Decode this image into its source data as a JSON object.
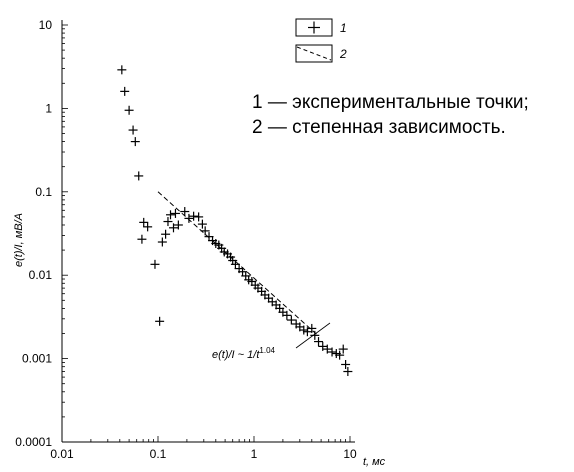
{
  "chart_data": {
    "type": "scatter",
    "xscale": "log",
    "yscale": "log",
    "xlim": [
      0.01,
      10
    ],
    "ylim": [
      0.0001,
      10
    ],
    "xticks": [
      "0.01",
      "0.1",
      "1",
      "10"
    ],
    "yticks": [
      "0.0001",
      "0.001",
      "0.01",
      "0.1",
      "1",
      "10"
    ],
    "xlabel": "t, мс",
    "ylabel": "e(t)/I, мВ/А",
    "legend": [
      {
        "label": "1",
        "marker": "+"
      },
      {
        "label": "2",
        "marker": "dashed-line"
      }
    ],
    "fit_annotation": "e(t)/I ~ 1/t^1.04",
    "series": [
      {
        "name": "1",
        "marker": "+",
        "points": [
          [
            0.042,
            2.9
          ],
          [
            0.045,
            1.6
          ],
          [
            0.05,
            0.95
          ],
          [
            0.055,
            0.55
          ],
          [
            0.058,
            0.4
          ],
          [
            0.063,
            0.155
          ],
          [
            0.068,
            0.027
          ],
          [
            0.071,
            0.043
          ],
          [
            0.078,
            0.038
          ],
          [
            0.093,
            0.0135
          ],
          [
            0.104,
            0.0028
          ],
          [
            0.111,
            0.025
          ],
          [
            0.12,
            0.031
          ],
          [
            0.127,
            0.044
          ],
          [
            0.135,
            0.053
          ],
          [
            0.145,
            0.037
          ],
          [
            0.152,
            0.055
          ],
          [
            0.163,
            0.04
          ],
          [
            0.19,
            0.058
          ],
          [
            0.21,
            0.048
          ],
          [
            0.235,
            0.051
          ],
          [
            0.265,
            0.05
          ],
          [
            0.29,
            0.041
          ],
          [
            0.31,
            0.034
          ],
          [
            0.34,
            0.029
          ],
          [
            0.37,
            0.026
          ],
          [
            0.4,
            0.024
          ],
          [
            0.43,
            0.023
          ],
          [
            0.46,
            0.021
          ],
          [
            0.49,
            0.019
          ],
          [
            0.53,
            0.018
          ],
          [
            0.57,
            0.0165
          ],
          [
            0.6,
            0.015
          ],
          [
            0.64,
            0.0135
          ],
          [
            0.7,
            0.012
          ],
          [
            0.76,
            0.011
          ],
          [
            0.82,
            0.0098
          ],
          [
            0.88,
            0.0088
          ],
          [
            0.95,
            0.0084
          ],
          [
            1.03,
            0.0076
          ],
          [
            1.1,
            0.007
          ],
          [
            1.2,
            0.0064
          ],
          [
            1.3,
            0.0058
          ],
          [
            1.42,
            0.0053
          ],
          [
            1.55,
            0.0048
          ],
          [
            1.7,
            0.0044
          ],
          [
            1.85,
            0.004
          ],
          [
            2.0,
            0.0036
          ],
          [
            2.2,
            0.0033
          ],
          [
            2.45,
            0.0029
          ],
          [
            2.75,
            0.0026
          ],
          [
            3.0,
            0.0024
          ],
          [
            3.3,
            0.0022
          ],
          [
            3.6,
            0.0021
          ],
          [
            4.0,
            0.0023
          ],
          [
            4.3,
            0.0019
          ],
          [
            4.7,
            0.0016
          ],
          [
            5.2,
            0.0014
          ],
          [
            5.8,
            0.0013
          ],
          [
            6.5,
            0.0012
          ],
          [
            7.2,
            0.00115
          ],
          [
            7.8,
            0.0011
          ],
          [
            8.5,
            0.0013
          ],
          [
            9.0,
            0.00085
          ],
          [
            9.5,
            0.0007
          ]
        ]
      },
      {
        "name": "2",
        "type": "line",
        "style": "dashed",
        "points": [
          [
            0.1,
            0.1
          ],
          [
            4.5,
            0.00195
          ]
        ]
      }
    ]
  },
  "note": {
    "line1": "1 — экспериментальные точки;",
    "line2": "2 — степенная зависимость."
  }
}
